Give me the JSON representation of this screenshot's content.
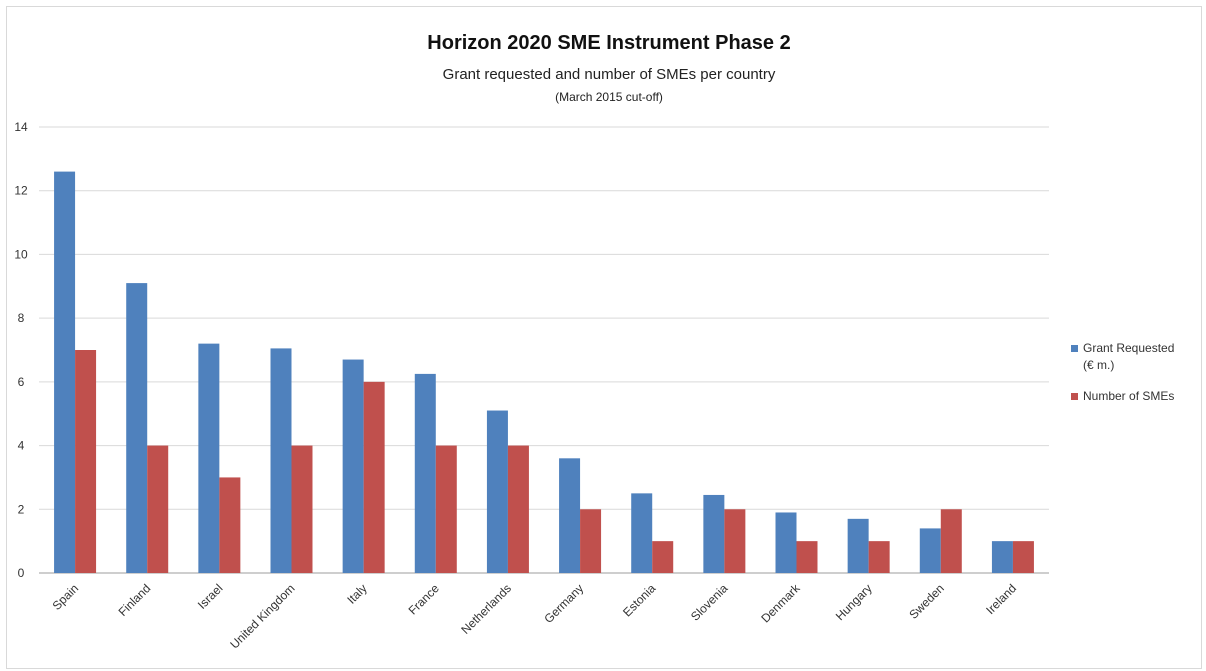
{
  "chart_data": {
    "type": "bar",
    "title": "Horizon 2020 SME Instrument Phase 2",
    "subtitle": "Grant requested and number of SMEs per country",
    "subtitle2": "(March 2015 cut-off)",
    "categories": [
      "Spain",
      "Finland",
      "Israel",
      "United Kingdom",
      "Italy",
      "France",
      "Netherlands",
      "Germany",
      "Estonia",
      "Slovenia",
      "Denmark",
      "Hungary",
      "Sweden",
      "Ireland"
    ],
    "series": [
      {
        "name": "Grant Requested (€ m.)",
        "legend_lines": [
          "Grant Requested",
          "(€ m.)"
        ],
        "color": "#4f81bd",
        "values": [
          12.6,
          9.1,
          7.2,
          7.05,
          6.7,
          6.25,
          5.1,
          3.6,
          2.5,
          2.45,
          1.9,
          1.7,
          1.4,
          1.0
        ]
      },
      {
        "name": "Number of SMEs",
        "legend_lines": [
          "Number of SMEs"
        ],
        "color": "#c0504d",
        "values": [
          7,
          4,
          3,
          4,
          6,
          4,
          4,
          2,
          1,
          2,
          1,
          1,
          2,
          1
        ]
      }
    ],
    "ylim": [
      0,
      14
    ],
    "yticks": [
      0,
      2,
      4,
      6,
      8,
      10,
      12,
      14
    ],
    "grid": true,
    "legend_position": "right"
  }
}
